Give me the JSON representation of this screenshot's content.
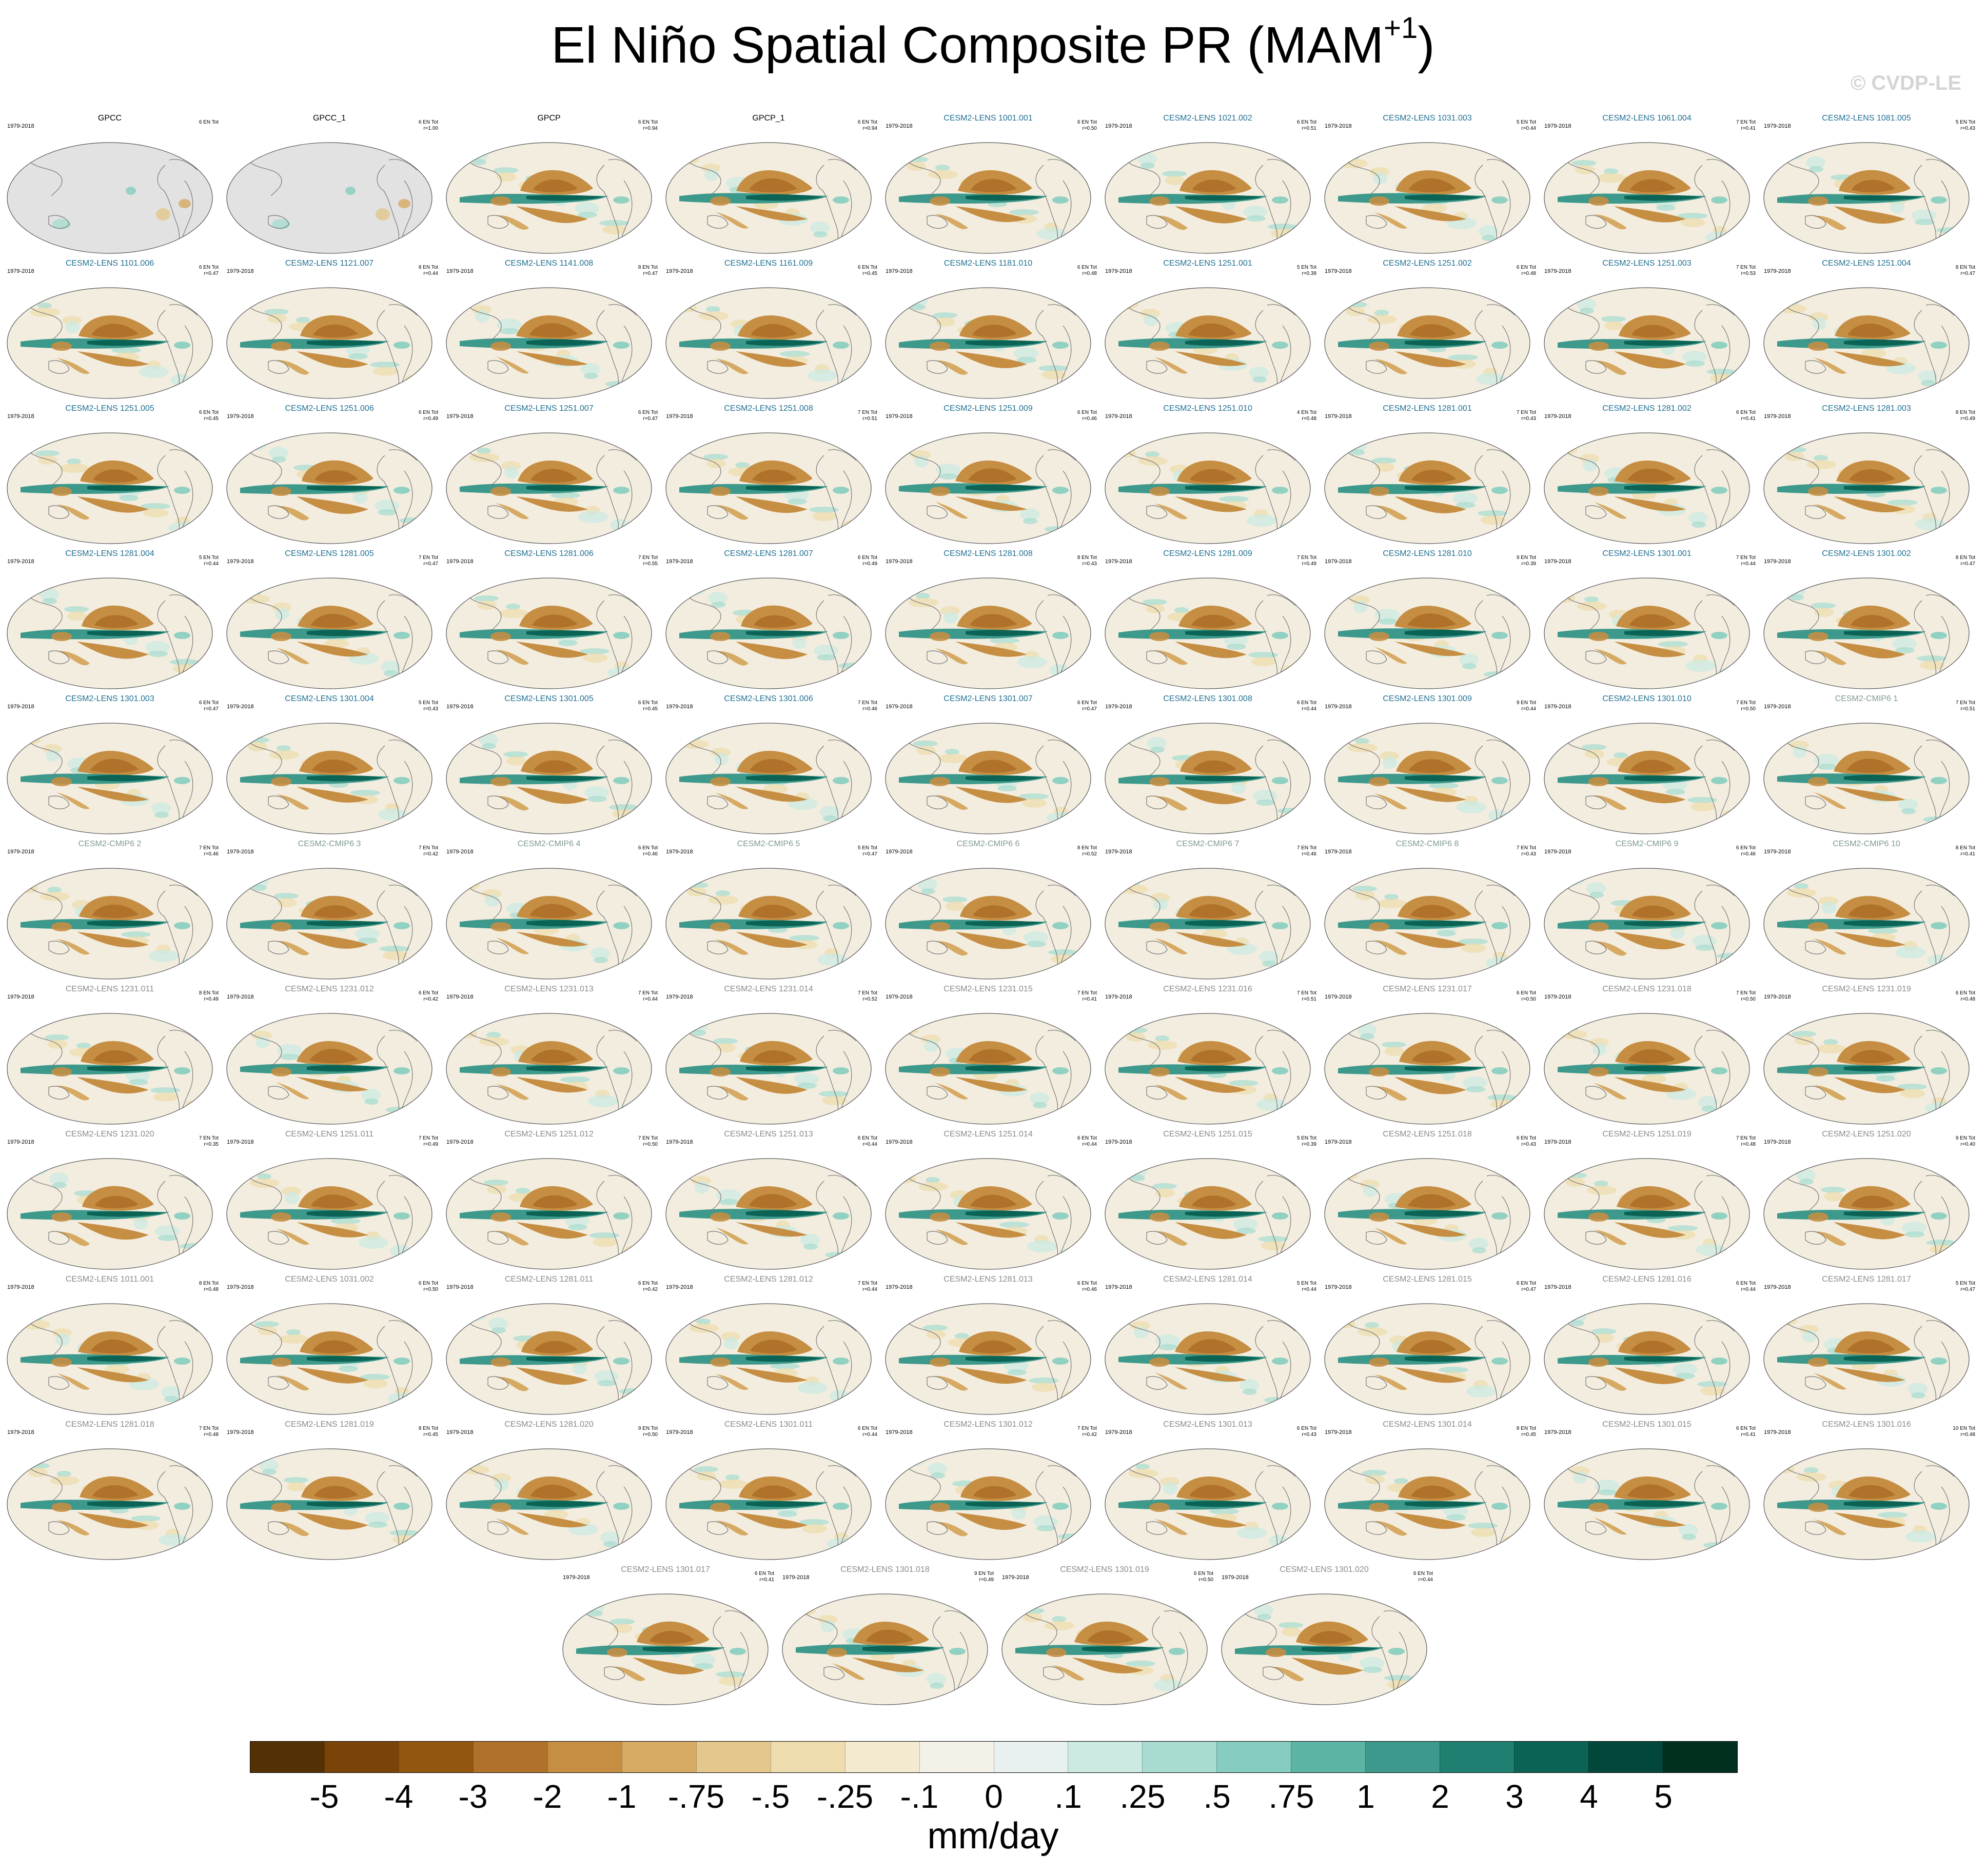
{
  "title": "El Niño Spatial Composite PR (MAM",
  "title_superscript": "+1",
  "title_close": ")",
  "copyright": "© CVDP-LE",
  "units": "mm/day",
  "colors": {
    "observations_title": "#000000",
    "cesm2_lens_smbb_title": "#1f6f91",
    "cesm2_cmip6_title": "#7f9a8c",
    "cesm2_lens_cmip6_title": "#8a8a8a",
    "land_mask": "#e2e2e2",
    "dry_anomaly": "#a6611a",
    "wet_anomaly": "#018571"
  },
  "colorbar": {
    "labels": [
      "-5",
      "-4",
      "-3",
      "-2",
      "-1",
      "-.75",
      "-.5",
      "-.25",
      "-.1",
      "0",
      ".1",
      ".25",
      ".5",
      ".75",
      "1",
      "2",
      "3",
      "4",
      "5"
    ],
    "colors": [
      "#543005",
      "#7a4408",
      "#93560f",
      "#b0712a",
      "#c58e43",
      "#d6aa63",
      "#e3c78b",
      "#eedcae",
      "#f4ead0",
      "#f4f1e9",
      "#e8f1ef",
      "#cce9e2",
      "#a9dcd1",
      "#86cdbf",
      "#5cb4a5",
      "#3d998b",
      "#1f7f70",
      "#0a6354",
      "#03473b",
      "#02301f"
    ]
  },
  "panels": [
    {
      "title": "GPCC",
      "years": "1979-2018",
      "stat": "6 EN Tot",
      "group": "obs",
      "masked": true
    },
    {
      "title": "GPCC_1",
      "years": "",
      "stat": "6 EN Tot\nr=1.00",
      "group": "obs",
      "masked": true
    },
    {
      "title": "GPCP",
      "years": "",
      "stat": "6 EN Tot\nr=0.94",
      "group": "obs"
    },
    {
      "title": "GPCP_1",
      "years": "",
      "stat": "6 EN Tot\nr=0.94",
      "group": "obs"
    },
    {
      "title": "CESM2-LENS 1001.001",
      "years": "1979-2018",
      "stat": "6 EN Tot\nr=0.50",
      "group": "smbb"
    },
    {
      "title": "CESM2-LENS 1021.002",
      "years": "1979-2018",
      "stat": "6 EN Tot\nr=0.51",
      "group": "smbb"
    },
    {
      "title": "CESM2-LENS 1031.003",
      "years": "1979-2018",
      "stat": "5 EN Tot\nr=0.44",
      "group": "smbb"
    },
    {
      "title": "CESM2-LENS 1061.004",
      "years": "1979-2018",
      "stat": "7 EN Tot\nr=0.41",
      "group": "smbb"
    },
    {
      "title": "CESM2-LENS 1081.005",
      "years": "1979-2018",
      "stat": "5 EN Tot\nr=0.43",
      "group": "smbb"
    },
    {
      "title": "CESM2-LENS 1101.006",
      "years": "1979-2018",
      "stat": "6 EN Tot\nr=0.47",
      "group": "smbb"
    },
    {
      "title": "CESM2-LENS 1121.007",
      "years": "1979-2018",
      "stat": "8 EN Tot\nr=0.44",
      "group": "smbb"
    },
    {
      "title": "CESM2-LENS 1141.008",
      "years": "1979-2018",
      "stat": "8 EN Tot\nr=0.47",
      "group": "smbb"
    },
    {
      "title": "CESM2-LENS 1161.009",
      "years": "1979-2018",
      "stat": "6 EN Tot\nr=0.45",
      "group": "smbb"
    },
    {
      "title": "CESM2-LENS 1181.010",
      "years": "1979-2018",
      "stat": "6 EN Tot\nr=0.48",
      "group": "smbb"
    },
    {
      "title": "CESM2-LENS 1251.001",
      "years": "1979-2018",
      "stat": "5 EN Tot\nr=0.39",
      "group": "smbb"
    },
    {
      "title": "CESM2-LENS 1251.002",
      "years": "1979-2018",
      "stat": "6 EN Tot\nr=0.48",
      "group": "smbb"
    },
    {
      "title": "CESM2-LENS 1251.003",
      "years": "1979-2018",
      "stat": "7 EN Tot\nr=0.53",
      "group": "smbb"
    },
    {
      "title": "CESM2-LENS 1251.004",
      "years": "1979-2018",
      "stat": "8 EN Tot\nr=0.47",
      "group": "smbb"
    },
    {
      "title": "CESM2-LENS 1251.005",
      "years": "1979-2018",
      "stat": "6 EN Tot\nr=0.45",
      "group": "smbb"
    },
    {
      "title": "CESM2-LENS 1251.006",
      "years": "1979-2018",
      "stat": "6 EN Tot\nr=0.49",
      "group": "smbb"
    },
    {
      "title": "CESM2-LENS 1251.007",
      "years": "1979-2018",
      "stat": "6 EN Tot\nr=0.47",
      "group": "smbb"
    },
    {
      "title": "CESM2-LENS 1251.008",
      "years": "1979-2018",
      "stat": "7 EN Tot\nr=0.51",
      "group": "smbb"
    },
    {
      "title": "CESM2-LENS 1251.009",
      "years": "1979-2018",
      "stat": "6 EN Tot\nr=0.46",
      "group": "smbb"
    },
    {
      "title": "CESM2-LENS 1251.010",
      "years": "1979-2018",
      "stat": "4 EN Tot\nr=0.48",
      "group": "smbb"
    },
    {
      "title": "CESM2-LENS 1281.001",
      "years": "1979-2018",
      "stat": "7 EN Tot\nr=0.43",
      "group": "smbb"
    },
    {
      "title": "CESM2-LENS 1281.002",
      "years": "1979-2018",
      "stat": "6 EN Tot\nr=0.41",
      "group": "smbb"
    },
    {
      "title": "CESM2-LENS 1281.003",
      "years": "1979-2018",
      "stat": "8 EN Tot\nr=0.49",
      "group": "smbb"
    },
    {
      "title": "CESM2-LENS 1281.004",
      "years": "1979-2018",
      "stat": "5 EN Tot\nr=0.44",
      "group": "smbb"
    },
    {
      "title": "CESM2-LENS 1281.005",
      "years": "1979-2018",
      "stat": "7 EN Tot\nr=0.47",
      "group": "smbb"
    },
    {
      "title": "CESM2-LENS 1281.006",
      "years": "1979-2018",
      "stat": "7 EN Tot\nr=0.55",
      "group": "smbb"
    },
    {
      "title": "CESM2-LENS 1281.007",
      "years": "1979-2018",
      "stat": "6 EN Tot\nr=0.49",
      "group": "smbb"
    },
    {
      "title": "CESM2-LENS 1281.008",
      "years": "1979-2018",
      "stat": "8 EN Tot\nr=0.43",
      "group": "smbb"
    },
    {
      "title": "CESM2-LENS 1281.009",
      "years": "1979-2018",
      "stat": "7 EN Tot\nr=0.49",
      "group": "smbb"
    },
    {
      "title": "CESM2-LENS 1281.010",
      "years": "1979-2018",
      "stat": "9 EN Tot\nr=0.39",
      "group": "smbb"
    },
    {
      "title": "CESM2-LENS 1301.001",
      "years": "1979-2018",
      "stat": "7 EN Tot\nr=0.44",
      "group": "smbb"
    },
    {
      "title": "CESM2-LENS 1301.002",
      "years": "1979-2018",
      "stat": "8 EN Tot\nr=0.47",
      "group": "smbb"
    },
    {
      "title": "CESM2-LENS 1301.003",
      "years": "1979-2018",
      "stat": "6 EN Tot\nr=0.47",
      "group": "smbb"
    },
    {
      "title": "CESM2-LENS 1301.004",
      "years": "1979-2018",
      "stat": "5 EN Tot\nr=0.43",
      "group": "smbb"
    },
    {
      "title": "CESM2-LENS 1301.005",
      "years": "1979-2018",
      "stat": "6 EN Tot\nr=0.45",
      "group": "smbb"
    },
    {
      "title": "CESM2-LENS 1301.006",
      "years": "1979-2018",
      "stat": "7 EN Tot\nr=0.46",
      "group": "smbb"
    },
    {
      "title": "CESM2-LENS 1301.007",
      "years": "1979-2018",
      "stat": "6 EN Tot\nr=0.47",
      "group": "smbb"
    },
    {
      "title": "CESM2-LENS 1301.008",
      "years": "1979-2018",
      "stat": "6 EN Tot\nr=0.44",
      "group": "smbb"
    },
    {
      "title": "CESM2-LENS 1301.009",
      "years": "1979-2018",
      "stat": "9 EN Tot\nr=0.44",
      "group": "smbb"
    },
    {
      "title": "CESM2-LENS 1301.010",
      "years": "1979-2018",
      "stat": "7 EN Tot\nr=0.50",
      "group": "smbb"
    },
    {
      "title": "CESM2-CMIP6 1",
      "years": "1979-2018",
      "stat": "7 EN Tot\nr=0.51",
      "group": "cmip6"
    },
    {
      "title": "CESM2-CMIP6 2",
      "years": "1979-2018",
      "stat": "7 EN Tot\nr=0.46",
      "group": "cmip6"
    },
    {
      "title": "CESM2-CMIP6 3",
      "years": "1979-2018",
      "stat": "7 EN Tot\nr=0.42",
      "group": "cmip6"
    },
    {
      "title": "CESM2-CMIP6 4",
      "years": "1979-2018",
      "stat": "6 EN Tot\nr=0.46",
      "group": "cmip6"
    },
    {
      "title": "CESM2-CMIP6 5",
      "years": "1979-2018",
      "stat": "5 EN Tot\nr=0.47",
      "group": "cmip6"
    },
    {
      "title": "CESM2-CMIP6 6",
      "years": "1979-2018",
      "stat": "8 EN Tot\nr=0.52",
      "group": "cmip6"
    },
    {
      "title": "CESM2-CMIP6 7",
      "years": "1979-2018",
      "stat": "7 EN Tot\nr=0.46",
      "group": "cmip6"
    },
    {
      "title": "CESM2-CMIP6 8",
      "years": "1979-2018",
      "stat": "7 EN Tot\nr=0.43",
      "group": "cmip6"
    },
    {
      "title": "CESM2-CMIP6 9",
      "years": "1979-2018",
      "stat": "6 EN Tot\nr=0.46",
      "group": "cmip6"
    },
    {
      "title": "CESM2-CMIP6 10",
      "years": "1979-2018",
      "stat": "8 EN Tot\nr=0.41",
      "group": "cmip6"
    },
    {
      "title": "CESM2-LENS 1231.011",
      "years": "1979-2018",
      "stat": "8 EN Tot\nr=0.49",
      "group": "cmip6lens"
    },
    {
      "title": "CESM2-LENS 1231.012",
      "years": "1979-2018",
      "stat": "6 EN Tot\nr=0.42",
      "group": "cmip6lens"
    },
    {
      "title": "CESM2-LENS 1231.013",
      "years": "1979-2018",
      "stat": "7 EN Tot\nr=0.44",
      "group": "cmip6lens"
    },
    {
      "title": "CESM2-LENS 1231.014",
      "years": "1979-2018",
      "stat": "7 EN Tot\nr=0.52",
      "group": "cmip6lens"
    },
    {
      "title": "CESM2-LENS 1231.015",
      "years": "1979-2018",
      "stat": "7 EN Tot\nr=0.41",
      "group": "cmip6lens"
    },
    {
      "title": "CESM2-LENS 1231.016",
      "years": "1979-2018",
      "stat": "7 EN Tot\nr=0.51",
      "group": "cmip6lens"
    },
    {
      "title": "CESM2-LENS 1231.017",
      "years": "1979-2018",
      "stat": "6 EN Tot\nr=0.50",
      "group": "cmip6lens"
    },
    {
      "title": "CESM2-LENS 1231.018",
      "years": "1979-2018",
      "stat": "7 EN Tot\nr=0.50",
      "group": "cmip6lens"
    },
    {
      "title": "CESM2-LENS 1231.019",
      "years": "1979-2018",
      "stat": "6 EN Tot\nr=0.48",
      "group": "cmip6lens"
    },
    {
      "title": "CESM2-LENS 1231.020",
      "years": "1979-2018",
      "stat": "7 EN Tot\nr=0.35",
      "group": "cmip6lens"
    },
    {
      "title": "CESM2-LENS 1251.011",
      "years": "1979-2018",
      "stat": "7 EN Tot\nr=0.49",
      "group": "cmip6lens"
    },
    {
      "title": "CESM2-LENS 1251.012",
      "years": "1979-2018",
      "stat": "7 EN Tot\nr=0.50",
      "group": "cmip6lens"
    },
    {
      "title": "CESM2-LENS 1251.013",
      "years": "1979-2018",
      "stat": "6 EN Tot\nr=0.44",
      "group": "cmip6lens"
    },
    {
      "title": "CESM2-LENS 1251.014",
      "years": "1979-2018",
      "stat": "6 EN Tot\nr=0.44",
      "group": "cmip6lens"
    },
    {
      "title": "CESM2-LENS 1251.015",
      "years": "1979-2018",
      "stat": "5 EN Tot\nr=0.39",
      "group": "cmip6lens"
    },
    {
      "title": "CESM2-LENS 1251.018",
      "years": "1979-2018",
      "stat": "6 EN Tot\nr=0.43",
      "group": "cmip6lens"
    },
    {
      "title": "CESM2-LENS 1251.019",
      "years": "1979-2018",
      "stat": "7 EN Tot\nr=0.48",
      "group": "cmip6lens"
    },
    {
      "title": "CESM2-LENS 1251.020",
      "years": "1979-2018",
      "stat": "9 EN Tot\nr=0.40",
      "group": "cmip6lens"
    },
    {
      "title": "CESM2-LENS 1011.001",
      "years": "1979-2018",
      "stat": "8 EN Tot\nr=0.48",
      "group": "cmip6lens"
    },
    {
      "title": "CESM2-LENS 1031.002",
      "years": "1979-2018",
      "stat": "6 EN Tot\nr=0.50",
      "group": "cmip6lens"
    },
    {
      "title": "CESM2-LENS 1281.011",
      "years": "1979-2018",
      "stat": "6 EN Tot\nr=0.42",
      "group": "cmip6lens"
    },
    {
      "title": "CESM2-LENS 1281.012",
      "years": "1979-2018",
      "stat": "7 EN Tot\nr=0.44",
      "group": "cmip6lens"
    },
    {
      "title": "CESM2-LENS 1281.013",
      "years": "1979-2018",
      "stat": "6 EN Tot\nr=0.46",
      "group": "cmip6lens"
    },
    {
      "title": "CESM2-LENS 1281.014",
      "years": "1979-2018",
      "stat": "5 EN Tot\nr=0.44",
      "group": "cmip6lens"
    },
    {
      "title": "CESM2-LENS 1281.015",
      "years": "1979-2018",
      "stat": "6 EN Tot\nr=0.47",
      "group": "cmip6lens"
    },
    {
      "title": "CESM2-LENS 1281.016",
      "years": "1979-2018",
      "stat": "6 EN Tot\nr=0.44",
      "group": "cmip6lens"
    },
    {
      "title": "CESM2-LENS 1281.017",
      "years": "1979-2018",
      "stat": "5 EN Tot\nr=0.47",
      "group": "cmip6lens"
    },
    {
      "title": "CESM2-LENS 1281.018",
      "years": "1979-2018",
      "stat": "7 EN Tot\nr=0.48",
      "group": "cmip6lens"
    },
    {
      "title": "CESM2-LENS 1281.019",
      "years": "1979-2018",
      "stat": "8 EN Tot\nr=0.45",
      "group": "cmip6lens"
    },
    {
      "title": "CESM2-LENS 1281.020",
      "years": "1979-2018",
      "stat": "9 EN Tot\nr=0.50",
      "group": "cmip6lens"
    },
    {
      "title": "CESM2-LENS 1301.011",
      "years": "1979-2018",
      "stat": "6 EN Tot\nr=0.44",
      "group": "cmip6lens"
    },
    {
      "title": "CESM2-LENS 1301.012",
      "years": "1979-2018",
      "stat": "7 EN Tot\nr=0.42",
      "group": "cmip6lens"
    },
    {
      "title": "CESM2-LENS 1301.013",
      "years": "1979-2018",
      "stat": "6 EN Tot\nr=0.43",
      "group": "cmip6lens"
    },
    {
      "title": "CESM2-LENS 1301.014",
      "years": "1979-2018",
      "stat": "8 EN Tot\nr=0.45",
      "group": "cmip6lens"
    },
    {
      "title": "CESM2-LENS 1301.015",
      "years": "1979-2018",
      "stat": "6 EN Tot\nr=0.41",
      "group": "cmip6lens"
    },
    {
      "title": "CESM2-LENS 1301.016",
      "years": "1979-2018",
      "stat": "10 EN Tot\nr=0.48",
      "group": "cmip6lens"
    },
    {
      "title": "CESM2-LENS 1301.017",
      "years": "1979-2018",
      "stat": "6 EN Tot\nr=0.41",
      "group": "cmip6lens"
    },
    {
      "title": "CESM2-LENS 1301.018",
      "years": "1979-2018",
      "stat": "9 EN Tot\nr=0.49",
      "group": "cmip6lens"
    },
    {
      "title": "CESM2-LENS 1301.019",
      "years": "1979-2018",
      "stat": "6 EN Tot\nr=0.50",
      "group": "cmip6lens"
    },
    {
      "title": "CESM2-LENS 1301.020",
      "years": "1979-2018",
      "stat": "6 EN Tot\nr=0.44",
      "group": "cmip6lens"
    }
  ]
}
